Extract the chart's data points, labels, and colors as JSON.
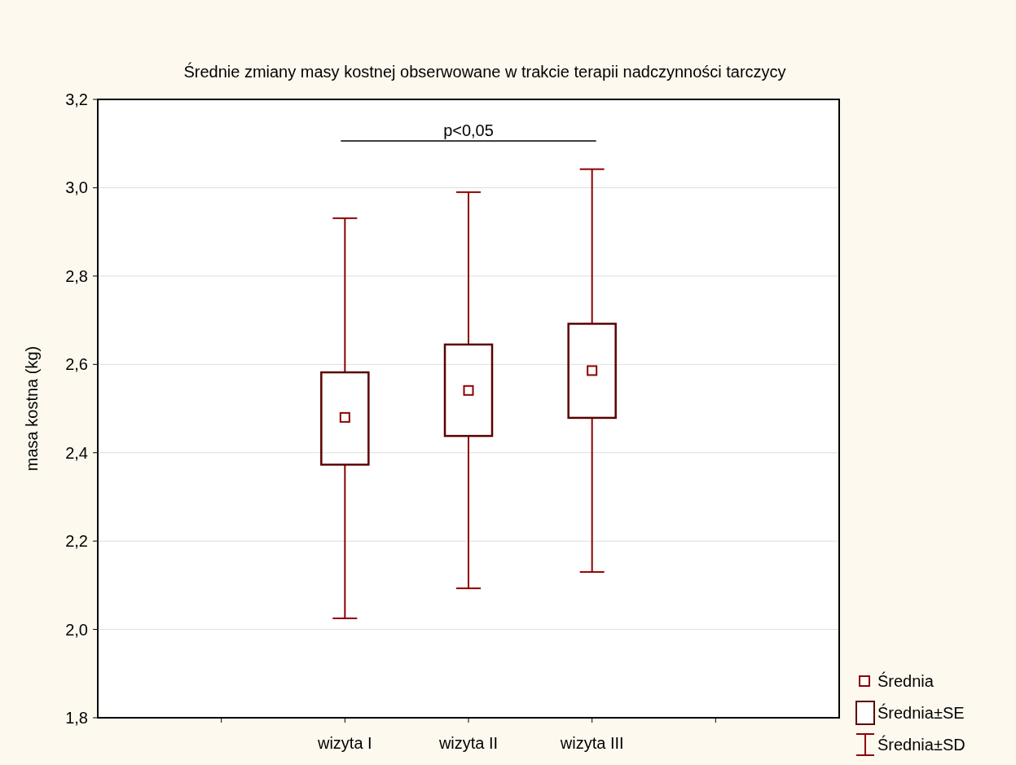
{
  "chart_data": {
    "type": "box",
    "title": "Średnie zmiany masy kostnej obserwowane w trakcie terapii nadczynności tarczycy",
    "ylabel": "masa kostna (kg)",
    "categories": [
      null,
      "wizyta I",
      "wizyta II",
      "wizyta III",
      null
    ],
    "boxes": [
      null,
      {
        "low": 2.025,
        "q1": 2.373,
        "q3": 2.582,
        "high": 2.931,
        "mean": 2.48
      },
      {
        "low": 2.093,
        "q1": 2.438,
        "q3": 2.645,
        "high": 2.99,
        "mean": 2.541
      },
      {
        "low": 2.13,
        "q1": 2.479,
        "q3": 2.692,
        "high": 3.042,
        "mean": 2.586
      },
      null
    ],
    "color": "#5b0000",
    "ylim": [
      1.8,
      3.2
    ],
    "yticks": [
      {
        "value": 1.8,
        "label": "1,8"
      },
      {
        "value": 2.0,
        "label": "2,0"
      },
      {
        "value": 2.2,
        "label": "2,2"
      },
      {
        "value": 2.4,
        "label": "2,4"
      },
      {
        "value": 2.6,
        "label": "2,6"
      },
      {
        "value": 2.8,
        "label": "2,8"
      },
      {
        "value": 3.0,
        "label": "3,0"
      },
      {
        "value": 3.2,
        "label": "3,2"
      }
    ],
    "grid": "y",
    "annotations": [
      "p<0,05",
      "Średnia",
      "Średnia±SE",
      "Średnia±SD"
    ]
  }
}
